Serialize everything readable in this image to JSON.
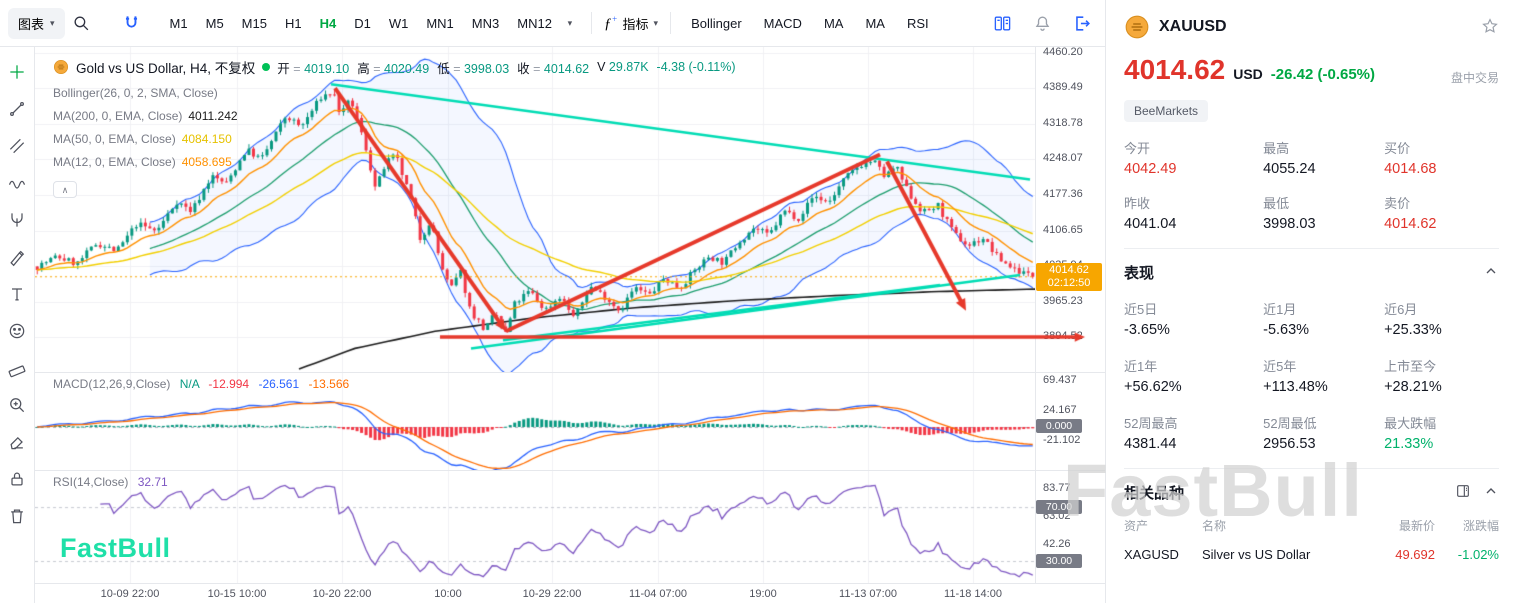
{
  "toolbar": {
    "chart_menu_label": "图表",
    "timeframes": [
      "M1",
      "M5",
      "M15",
      "H1",
      "H4",
      "D1",
      "W1",
      "MN1",
      "MN3",
      "MN12"
    ],
    "active_timeframe": "H4",
    "indicators_label": "指标",
    "indicator_shortcuts": [
      "Bollinger",
      "MACD",
      "MA",
      "MA",
      "RSI"
    ]
  },
  "left_tools": [
    "crosshair-tool",
    "trendline-tool",
    "channel-tool",
    "wave-tool",
    "pitchfork-tool",
    "brush-tool",
    "text-tool",
    "emoji-tool",
    "ruler-tool",
    "zoom-in-tool",
    "eraser-tool",
    "lock-tool",
    "trash-tool"
  ],
  "legend": {
    "title": "Gold vs US Dollar, H4, 不复权",
    "equals": "=",
    "ohlc": [
      {
        "label": "开",
        "value": "4019.10"
      },
      {
        "label": "高",
        "value": "4020.49"
      },
      {
        "label": "低",
        "value": "3998.03"
      },
      {
        "label": "收",
        "value": "4014.62"
      }
    ],
    "volume_label": "V",
    "volume": "29.87K",
    "change": "-4.38 (-0.11%)",
    "indicators": [
      {
        "label": "Bollinger(26, 0, 2, SMA, Close)",
        "value": "",
        "color": "#787b86"
      },
      {
        "label": "MA(200, 0, EMA, Close)",
        "value": "4011.242",
        "color": "#1b1b1b"
      },
      {
        "label": "MA(50, 0, EMA, Close)",
        "value": "4084.150",
        "color": "#e6c200"
      },
      {
        "label": "MA(12, 0, EMA, Close)",
        "value": "4058.695",
        "color": "#ff9100"
      }
    ]
  },
  "chart_data": {
    "type": "candlestick",
    "symbol": "Gold vs US Dollar",
    "timeframe": "H4",
    "price_axis_ticks": [
      "4460.20",
      "4389.49",
      "4318.78",
      "4248.07",
      "4177.36",
      "4106.65",
      "4035.94",
      "3965.23",
      "3894.52"
    ],
    "time_axis_ticks": [
      "10-09 22:00",
      "10-15 10:00",
      "10-20 22:00",
      "10:00",
      "10-29 22:00",
      "11-04 07:00",
      "19:00",
      "11-13 07:00",
      "11-18 14:00"
    ],
    "price_range": [
      3825,
      4472
    ],
    "current_price": 4014.62,
    "current_price_label": "4014.62",
    "countdown": "02:12:50",
    "price_path": [
      [
        0,
        4035
      ],
      [
        0.02,
        4055
      ],
      [
        0.04,
        4040
      ],
      [
        0.06,
        4082
      ],
      [
        0.08,
        4065
      ],
      [
        0.1,
        4120
      ],
      [
        0.12,
        4105
      ],
      [
        0.14,
        4165
      ],
      [
        0.155,
        4145
      ],
      [
        0.175,
        4215
      ],
      [
        0.19,
        4200
      ],
      [
        0.21,
        4268
      ],
      [
        0.225,
        4248
      ],
      [
        0.25,
        4335
      ],
      [
        0.265,
        4312
      ],
      [
        0.285,
        4372
      ],
      [
        0.297,
        4383
      ],
      [
        0.305,
        4335
      ],
      [
        0.315,
        4368
      ],
      [
        0.33,
        4272
      ],
      [
        0.34,
        4188
      ],
      [
        0.35,
        4240
      ],
      [
        0.36,
        4256
      ],
      [
        0.375,
        4172
      ],
      [
        0.385,
        4088
      ],
      [
        0.395,
        4128
      ],
      [
        0.405,
        4042
      ],
      [
        0.415,
        3988
      ],
      [
        0.425,
        4026
      ],
      [
        0.435,
        3948
      ],
      [
        0.45,
        3908
      ],
      [
        0.46,
        3942
      ],
      [
        0.47,
        3898
      ],
      [
        0.48,
        3962
      ],
      [
        0.495,
        3986
      ],
      [
        0.51,
        3948
      ],
      [
        0.525,
        3976
      ],
      [
        0.54,
        3932
      ],
      [
        0.555,
        3996
      ],
      [
        0.57,
        3976
      ],
      [
        0.585,
        3948
      ],
      [
        0.6,
        3992
      ],
      [
        0.615,
        3978
      ],
      [
        0.63,
        4012
      ],
      [
        0.645,
        3992
      ],
      [
        0.66,
        4026
      ],
      [
        0.675,
        4056
      ],
      [
        0.69,
        4042
      ],
      [
        0.705,
        4086
      ],
      [
        0.72,
        4112
      ],
      [
        0.735,
        4096
      ],
      [
        0.75,
        4146
      ],
      [
        0.765,
        4132
      ],
      [
        0.78,
        4176
      ],
      [
        0.795,
        4162
      ],
      [
        0.81,
        4206
      ],
      [
        0.825,
        4236
      ],
      [
        0.84,
        4246
      ],
      [
        0.852,
        4212
      ],
      [
        0.862,
        4236
      ],
      [
        0.875,
        4182
      ],
      [
        0.89,
        4142
      ],
      [
        0.905,
        4156
      ],
      [
        0.92,
        4102
      ],
      [
        0.935,
        4076
      ],
      [
        0.95,
        4092
      ],
      [
        0.965,
        4052
      ],
      [
        0.98,
        4032
      ],
      [
        1,
        4014.62
      ]
    ],
    "ma200_path": [
      [
        0.26,
        3828
      ],
      [
        0.32,
        3872
      ],
      [
        0.4,
        3906
      ],
      [
        0.5,
        3933
      ],
      [
        0.6,
        3953
      ],
      [
        0.7,
        3967
      ],
      [
        0.8,
        3977
      ],
      [
        0.9,
        3985
      ],
      [
        1,
        3990
      ]
    ],
    "annotations": [
      {
        "name": "descending-trendline",
        "color": "teal",
        "width": 2.5,
        "from": [
          0.296,
          4398
        ],
        "to": [
          0.995,
          4208
        ],
        "arrow": false
      },
      {
        "name": "support-trendline-1",
        "color": "teal",
        "width": 2.5,
        "from": [
          0.436,
          3872
        ],
        "to": [
          0.985,
          4018
        ],
        "arrow": false
      },
      {
        "name": "support-trendline-2",
        "color": "teal",
        "width": 2.5,
        "from": [
          0.468,
          3888
        ],
        "to": [
          0.905,
          3998
        ],
        "arrow": false
      },
      {
        "name": "impulse-down-arrow",
        "color": "red",
        "width": 4,
        "from": [
          0.3,
          4390
        ],
        "to": [
          0.471,
          3906
        ],
        "arrow": true
      },
      {
        "name": "impulse-up-line",
        "color": "red",
        "width": 4,
        "from": [
          0.471,
          3906
        ],
        "to": [
          0.845,
          4258
        ],
        "arrow": false
      },
      {
        "name": "projection-down-arrow",
        "color": "red",
        "width": 4,
        "from": [
          0.852,
          4244
        ],
        "to": [
          0.931,
          3947
        ],
        "arrow": true
      },
      {
        "name": "horizontal-support-arrow",
        "color": "red",
        "width": 3.5,
        "from": [
          0.405,
          3894.5
        ],
        "to": [
          1.05,
          3894.5
        ],
        "arrow": true
      }
    ],
    "macd": {
      "label": "MACD(12,26,9,Close)",
      "na": "N/A",
      "hist": "-12.994",
      "macd": "-26.561",
      "signal": "-13.566",
      "axis_ticks": [
        "69.437",
        "24.167",
        "-21.102"
      ],
      "zero_label": "0.000"
    },
    "rsi": {
      "label": "RSI(14,Close)",
      "value": "32.71",
      "axis_ticks": [
        "83.77",
        "63.02",
        "42.26"
      ],
      "levels": [
        "70.00",
        "30.00"
      ]
    }
  },
  "colors": {
    "up": "#089981",
    "down": "#f23645",
    "boll": "#2962ff",
    "basis": "#1d9e6e",
    "ema50": "#f2cf00",
    "ema12": "#ff9100",
    "ma200": "#1b1b1b",
    "trend_teal": "#00dcb4",
    "trend_red": "#e6392b",
    "macd_line": "#2962ff",
    "macd_signal": "#ff6d00",
    "rsi_line": "#7e57c2",
    "price_label_bg": "#f7a600",
    "accent_green": "#00a843",
    "accent_red": "#e0342b",
    "blue": "#2962ff"
  },
  "sidebar": {
    "symbol": "XAUUSD",
    "price": "4014.62",
    "currency": "USD",
    "change": "-26.42  (-0.65%)",
    "session": "盘中交易",
    "broker": "BeeMarkets",
    "stats": [
      {
        "label": "今开",
        "value": "4042.49",
        "tone": "red"
      },
      {
        "label": "最高",
        "value": "4055.24",
        "tone": ""
      },
      {
        "label": "买价",
        "value": "4014.68",
        "tone": "red"
      },
      {
        "label": "昨收",
        "value": "4041.04",
        "tone": ""
      },
      {
        "label": "最低",
        "value": "3998.03",
        "tone": ""
      },
      {
        "label": "卖价",
        "value": "4014.62",
        "tone": "red"
      }
    ],
    "performance": {
      "title": "表现",
      "items": [
        {
          "label": "近5日",
          "value": "-3.65%",
          "tone": ""
        },
        {
          "label": "近1月",
          "value": "-5.63%",
          "tone": ""
        },
        {
          "label": "近6月",
          "value": "+25.33%",
          "tone": ""
        },
        {
          "label": "近1年",
          "value": "+56.62%",
          "tone": ""
        },
        {
          "label": "近5年",
          "value": "+113.48%",
          "tone": ""
        },
        {
          "label": "上市至今",
          "value": "+28.21%",
          "tone": ""
        },
        {
          "label": "52周最高",
          "value": "4381.44",
          "tone": ""
        },
        {
          "label": "52周最低",
          "value": "2956.53",
          "tone": ""
        },
        {
          "label": "最大跌幅",
          "value": "21.33%",
          "tone": "green"
        }
      ]
    },
    "related": {
      "title": "相关品种",
      "headers": [
        "资产",
        "名称",
        "最新价",
        "涨跌幅"
      ],
      "rows": [
        {
          "asset": "XAGUSD",
          "name": "Silver vs US Dollar",
          "price": "49.692",
          "change": "-1.02%"
        }
      ]
    }
  },
  "watermarks": {
    "chart": "FastBull",
    "sidebar": "FastBull"
  }
}
